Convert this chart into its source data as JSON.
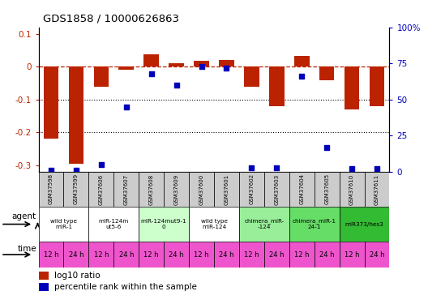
{
  "title": "GDS1858 / 10000626863",
  "samples": [
    "GSM37598",
    "GSM37599",
    "GSM37606",
    "GSM37607",
    "GSM37608",
    "GSM37609",
    "GSM37600",
    "GSM37601",
    "GSM37602",
    "GSM37603",
    "GSM37604",
    "GSM37605",
    "GSM37610",
    "GSM37611"
  ],
  "log10_ratio": [
    -0.22,
    -0.295,
    -0.06,
    -0.008,
    0.038,
    0.01,
    0.018,
    0.02,
    -0.06,
    -0.12,
    0.032,
    -0.04,
    -0.13,
    -0.12
  ],
  "percentile_rank": [
    1,
    1,
    5,
    45,
    68,
    60,
    73,
    72,
    3,
    3,
    66,
    17,
    2,
    2
  ],
  "ylim": [
    -0.32,
    0.12
  ],
  "y_left_ticks": [
    0.1,
    0.0,
    -0.1,
    -0.2,
    -0.3
  ],
  "y_right_ticks": [
    100,
    75,
    50,
    25,
    0
  ],
  "bar_color": "#bb2200",
  "scatter_color": "#0000bb",
  "agent_groups": [
    {
      "label": "wild type\nmiR-1",
      "cols": [
        0,
        1
      ],
      "color": "#ffffff"
    },
    {
      "label": "miR-124m\nut5-6",
      "cols": [
        2,
        3
      ],
      "color": "#ffffff"
    },
    {
      "label": "miR-124mut9-1\n0",
      "cols": [
        4,
        5
      ],
      "color": "#ccffcc"
    },
    {
      "label": "wild type\nmiR-124",
      "cols": [
        6,
        7
      ],
      "color": "#ffffff"
    },
    {
      "label": "chimera_miR-\n-124",
      "cols": [
        8,
        9
      ],
      "color": "#99ee99"
    },
    {
      "label": "chimera_miR-1\n24-1",
      "cols": [
        10,
        11
      ],
      "color": "#66dd66"
    },
    {
      "label": "miR373/hes3",
      "cols": [
        12,
        13
      ],
      "color": "#33bb33"
    }
  ],
  "time_labels": [
    "12 h",
    "24 h",
    "12 h",
    "24 h",
    "12 h",
    "24 h",
    "12 h",
    "24 h",
    "12 h",
    "24 h",
    "12 h",
    "24 h",
    "12 h",
    "24 h"
  ],
  "time_color": "#ee55cc",
  "gsm_bg": "#cccccc",
  "chart_bg": "#ffffff"
}
